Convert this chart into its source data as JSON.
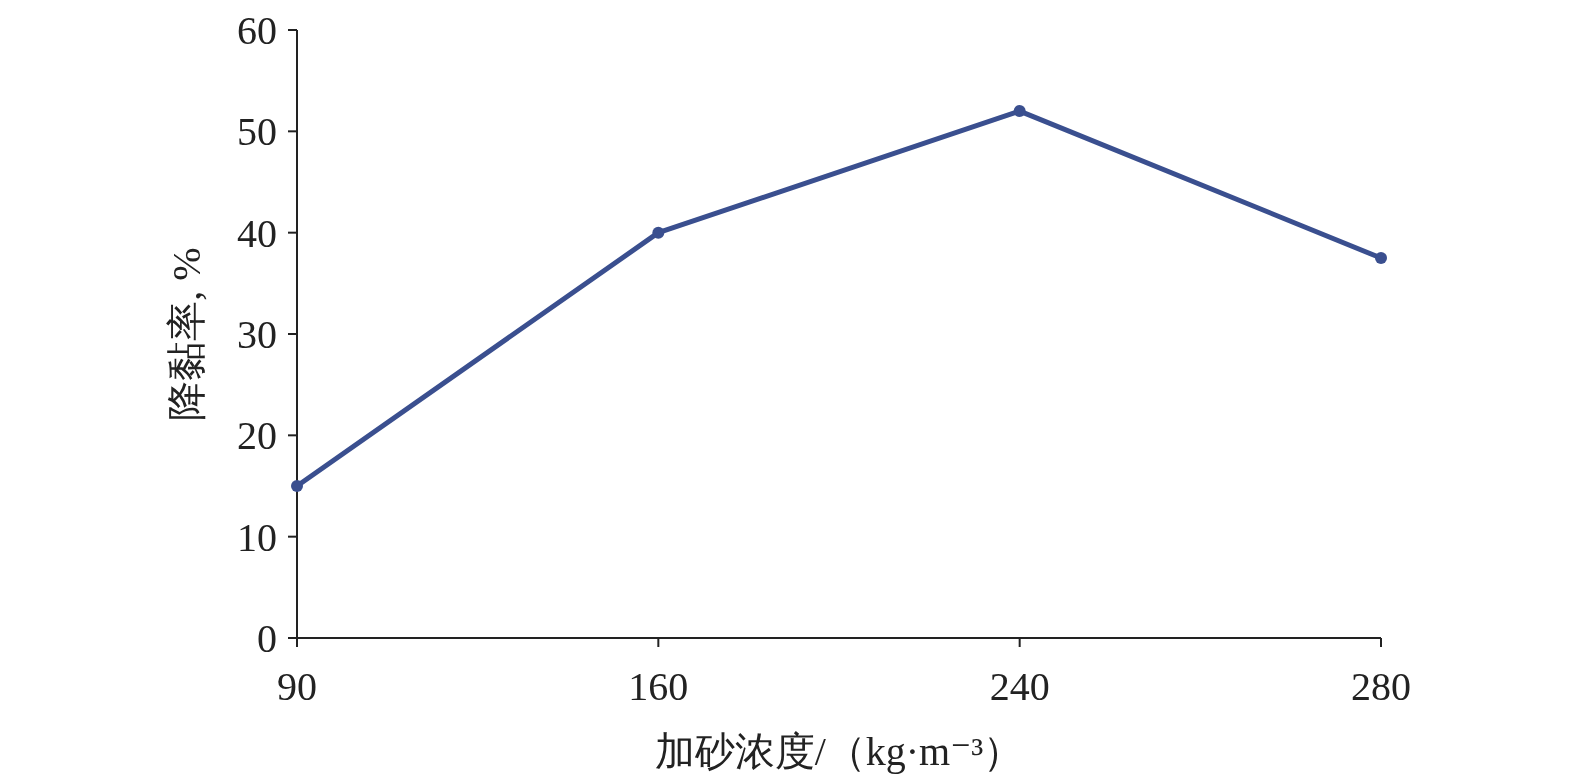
{
  "chart_data": {
    "type": "line",
    "categories": [
      "90",
      "160",
      "240",
      "280"
    ],
    "series": [
      {
        "color": "#3a4f8f",
        "values": [
          15,
          40,
          52,
          37.5
        ]
      }
    ],
    "ylim": [
      0,
      60
    ],
    "yticks": [
      0,
      10,
      20,
      30,
      40,
      50,
      60
    ],
    "xlabel": "加砂浓度/（kg·m⁻³）",
    "ylabel": "降黏率, %",
    "marker": "circle",
    "line_style": "solid"
  }
}
